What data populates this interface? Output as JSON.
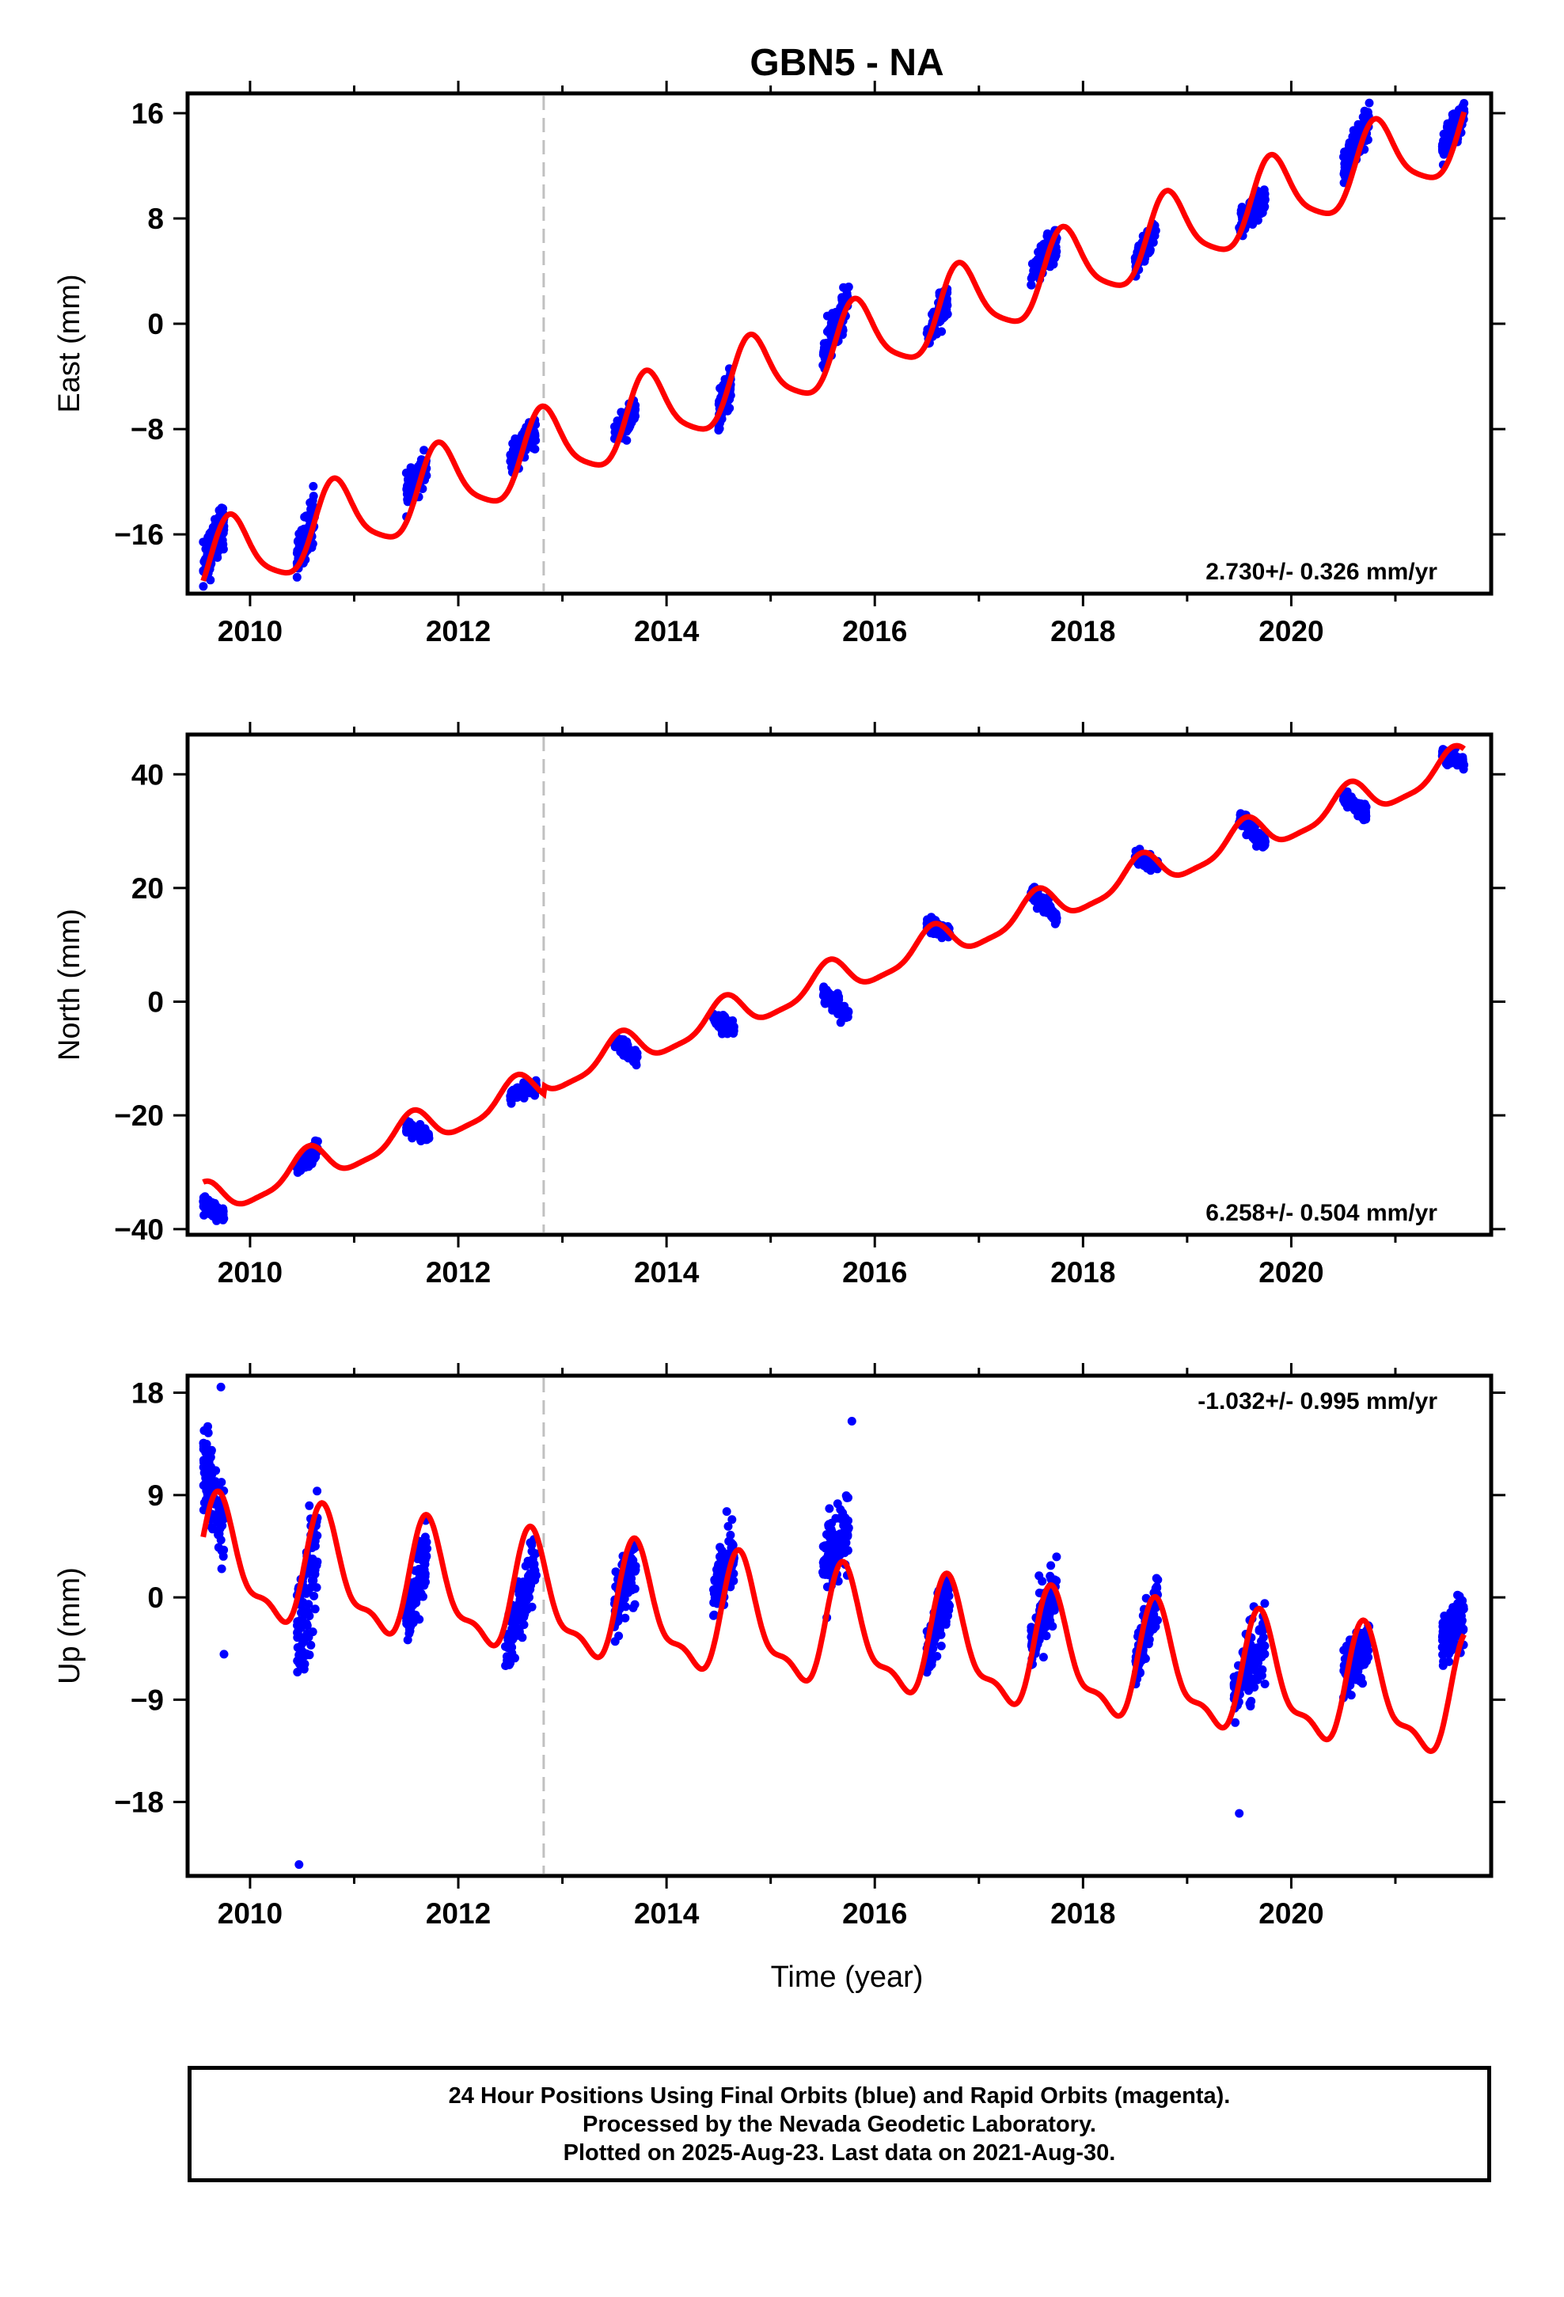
{
  "title": "GBN5 - NA",
  "colors": {
    "data": "#0000ff",
    "model": "#ff0000",
    "offset": "#c0c0c0"
  },
  "footer": {
    "line1": "24 Hour Positions Using Final Orbits (blue) and Rapid Orbits (magenta).",
    "line2": "Processed by the Nevada Geodetic Laboratory.",
    "line3": "Plotted on 2025-Aug-23. Last data on 2021-Aug-30."
  },
  "chart_data": [
    {
      "type": "scatter",
      "title": "GBN5 - NA",
      "ylabel": "East (mm)",
      "xlabel": "",
      "xlim": [
        2009.4,
        2021.92
      ],
      "ylim": [
        -20.5,
        17.5
      ],
      "x_ticks": [
        2010,
        2012,
        2014,
        2016,
        2018,
        2020
      ],
      "y_ticks": [
        16,
        8,
        0,
        -8,
        -16
      ],
      "y_tick_labels": [
        "16",
        "8",
        "0",
        "−8",
        "−16"
      ],
      "rate_label": "2.730+/- 0.326 mm/yr",
      "rate_position": "bottom-right",
      "offset_epoch": 2012.82,
      "model": {
        "t0": 2009.55,
        "y0": -18.6,
        "rate": 2.73,
        "ann_amp": 2.9,
        "ann_phase": 2009.57,
        "semi_amp": 0.6,
        "semi_phase": 2009.65,
        "offset": 0
      },
      "data_clusters": [
        {
          "t0": 2009.55,
          "t1": 2009.75,
          "y_start": -18.5,
          "y_end": -15.0,
          "spread": 1.5
        },
        {
          "t0": 2010.45,
          "t1": 2010.62,
          "y_start": -18.0,
          "y_end": -14.5,
          "spread": 1.4
        },
        {
          "t0": 2011.5,
          "t1": 2011.7,
          "y_start": -12.8,
          "y_end": -10.8,
          "spread": 0.9
        },
        {
          "t0": 2012.5,
          "t1": 2012.75,
          "y_start": -10.5,
          "y_end": -8.0,
          "spread": 0.9
        },
        {
          "t0": 2013.5,
          "t1": 2013.7,
          "y_start": -8.5,
          "y_end": -6.5,
          "spread": 0.9
        },
        {
          "t0": 2014.5,
          "t1": 2014.62,
          "y_start": -7.0,
          "y_end": -4.5,
          "spread": 1.0
        },
        {
          "t0": 2015.5,
          "t1": 2015.75,
          "y_start": -2.5,
          "y_end": 2.0,
          "spread": 1.2
        },
        {
          "t0": 2016.5,
          "t1": 2016.7,
          "y_start": -1.0,
          "y_end": 2.0,
          "spread": 1.0
        },
        {
          "t0": 2017.5,
          "t1": 2017.75,
          "y_start": 3.5,
          "y_end": 6.5,
          "spread": 1.0
        },
        {
          "t0": 2018.5,
          "t1": 2018.7,
          "y_start": 4.5,
          "y_end": 7.0,
          "spread": 0.9
        },
        {
          "t0": 2019.5,
          "t1": 2019.75,
          "y_start": 7.5,
          "y_end": 9.5,
          "spread": 0.9
        },
        {
          "t0": 2020.5,
          "t1": 2020.75,
          "y_start": 12.0,
          "y_end": 15.5,
          "spread": 1.0
        },
        {
          "t0": 2021.45,
          "t1": 2021.66,
          "y_start": 13.5,
          "y_end": 16.0,
          "spread": 0.9
        }
      ]
    },
    {
      "type": "scatter",
      "ylabel": "North (mm)",
      "xlabel": "",
      "xlim": [
        2009.4,
        2021.92
      ],
      "ylim": [
        -41,
        47
      ],
      "x_ticks": [
        2010,
        2012,
        2014,
        2016,
        2018,
        2020
      ],
      "y_ticks": [
        40,
        20,
        0,
        -20,
        -40
      ],
      "y_tick_labels": [
        "40",
        "20",
        "0",
        "−20",
        "−40"
      ],
      "rate_label": "6.258+/- 0.504 mm/yr",
      "rate_position": "bottom-right",
      "offset_epoch": 2012.82,
      "model": {
        "t0": 2009.55,
        "y0": -35.5,
        "rate": 6.258,
        "ann_amp": 3.0,
        "ann_phase": 2009.3,
        "semi_amp": 0.8,
        "semi_phase": 2009.45,
        "offset": 1.5
      },
      "data_clusters": [
        {
          "t0": 2009.55,
          "t1": 2009.75,
          "y_start": -35.5,
          "y_end": -37.5,
          "spread": 1.0
        },
        {
          "t0": 2010.45,
          "t1": 2010.65,
          "y_start": -29.0,
          "y_end": -26.0,
          "spread": 1.2
        },
        {
          "t0": 2011.5,
          "t1": 2011.72,
          "y_start": -22.0,
          "y_end": -24.0,
          "spread": 1.0
        },
        {
          "t0": 2012.5,
          "t1": 2012.75,
          "y_start": -16.5,
          "y_end": -15.0,
          "spread": 1.0
        },
        {
          "t0": 2013.5,
          "t1": 2013.72,
          "y_start": -7.0,
          "y_end": -10.0,
          "spread": 1.2
        },
        {
          "t0": 2014.45,
          "t1": 2014.65,
          "y_start": -3.0,
          "y_end": -5.0,
          "spread": 1.0
        },
        {
          "t0": 2015.5,
          "t1": 2015.75,
          "y_start": 1.5,
          "y_end": -2.5,
          "spread": 1.2
        },
        {
          "t0": 2016.5,
          "t1": 2016.72,
          "y_start": 14.0,
          "y_end": 12.0,
          "spread": 1.0
        },
        {
          "t0": 2017.5,
          "t1": 2017.75,
          "y_start": 19.5,
          "y_end": 15.0,
          "spread": 1.0
        },
        {
          "t0": 2018.5,
          "t1": 2018.72,
          "y_start": 25.5,
          "y_end": 24.0,
          "spread": 1.0
        },
        {
          "t0": 2019.5,
          "t1": 2019.75,
          "y_start": 32.5,
          "y_end": 28.0,
          "spread": 1.2
        },
        {
          "t0": 2020.5,
          "t1": 2020.72,
          "y_start": 36.0,
          "y_end": 33.0,
          "spread": 1.0
        },
        {
          "t0": 2021.45,
          "t1": 2021.66,
          "y_start": 43.5,
          "y_end": 42.0,
          "spread": 0.9
        }
      ]
    },
    {
      "type": "scatter",
      "ylabel": "Up (mm)",
      "xlabel": "Time (year)",
      "xlim": [
        2009.4,
        2021.92
      ],
      "ylim": [
        -24.5,
        19.5
      ],
      "x_ticks": [
        2010,
        2012,
        2014,
        2016,
        2018,
        2020
      ],
      "y_ticks": [
        18,
        9,
        0,
        -9,
        -18
      ],
      "y_tick_labels": [
        "18",
        "9",
        "0",
        "−9",
        "−18"
      ],
      "rate_label": "-1.032+/- 0.995 mm/yr",
      "rate_position": "top-right",
      "offset_epoch": 2012.82,
      "model": {
        "t0": 2009.55,
        "y0": 3.0,
        "rate": -1.032,
        "ann_amp": 4.8,
        "ann_phase": 2009.47,
        "semi_amp": 1.8,
        "semi_phase": 2009.55,
        "offset": 0
      },
      "data_clusters": [
        {
          "t0": 2009.55,
          "t1": 2009.75,
          "y_start": 12.0,
          "y_end": 6.0,
          "spread": 3.2
        },
        {
          "t0": 2010.45,
          "t1": 2010.65,
          "y_start": -4.0,
          "y_end": 5.0,
          "spread": 4.5
        },
        {
          "t0": 2011.5,
          "t1": 2011.7,
          "y_start": -2.0,
          "y_end": 4.0,
          "spread": 2.5
        },
        {
          "t0": 2012.45,
          "t1": 2012.75,
          "y_start": -5.0,
          "y_end": 3.0,
          "spread": 2.5
        },
        {
          "t0": 2013.5,
          "t1": 2013.72,
          "y_start": -1.0,
          "y_end": 4.0,
          "spread": 2.2
        },
        {
          "t0": 2014.45,
          "t1": 2014.65,
          "y_start": 0.0,
          "y_end": 4.0,
          "spread": 2.2
        },
        {
          "t0": 2015.5,
          "t1": 2015.75,
          "y_start": 3.0,
          "y_end": 6.0,
          "spread": 2.8
        },
        {
          "t0": 2016.5,
          "t1": 2016.72,
          "y_start": -5.0,
          "y_end": 1.0,
          "spread": 2.0
        },
        {
          "t0": 2017.5,
          "t1": 2017.75,
          "y_start": -4.0,
          "y_end": 1.0,
          "spread": 2.2
        },
        {
          "t0": 2018.5,
          "t1": 2018.72,
          "y_start": -6.0,
          "y_end": 0.0,
          "spread": 2.2
        },
        {
          "t0": 2019.45,
          "t1": 2019.75,
          "y_start": -8.0,
          "y_end": -4.0,
          "spread": 2.6
        },
        {
          "t0": 2020.5,
          "t1": 2020.75,
          "y_start": -7.0,
          "y_end": -4.0,
          "spread": 2.0
        },
        {
          "t0": 2021.45,
          "t1": 2021.66,
          "y_start": -4.0,
          "y_end": -2.0,
          "spread": 1.8
        }
      ],
      "outliers": [
        {
          "t": 2010.47,
          "y": -23.5
        },
        {
          "t": 2019.5,
          "y": -19.0
        },
        {
          "t": 2009.72,
          "y": 18.5
        },
        {
          "t": 2015.78,
          "y": 15.5
        },
        {
          "t": 2009.75,
          "y": -5.0
        }
      ]
    }
  ]
}
